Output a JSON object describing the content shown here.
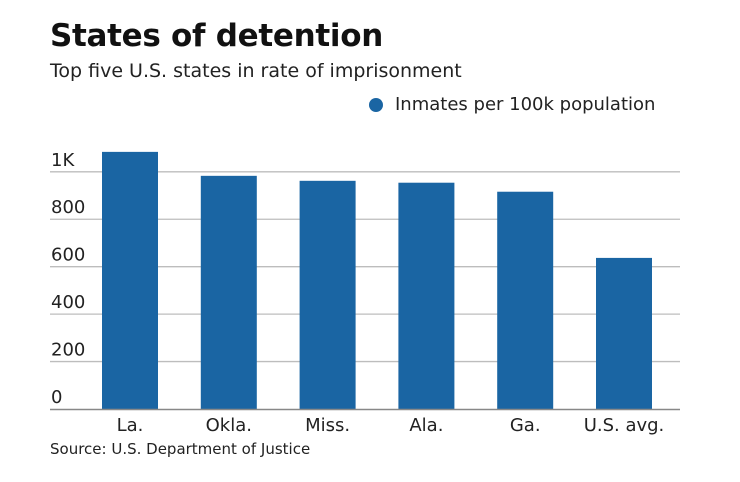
{
  "chart_data": {
    "type": "bar",
    "title": "States of detention",
    "subtitle": "Top five U.S. states in rate of imprisonment",
    "xlabel": "",
    "ylabel": "",
    "categories": [
      "La.",
      "Okla.",
      "Miss.",
      "Ala.",
      "Ga.",
      "U.S. avg."
    ],
    "series": [
      {
        "name": "Inmates per 100k population",
        "color": "#1a65a3",
        "values": [
          1084,
          983,
          962,
          954,
          916,
          637
        ]
      }
    ],
    "ylim": [
      0,
      1000
    ],
    "yticks": [
      0,
      200,
      400,
      600,
      800,
      1000
    ],
    "ytick_labels": [
      "0",
      "200",
      "400",
      "600",
      "800",
      "1K"
    ],
    "grid": true,
    "legend_position": "top-right",
    "source": "Source: U.S. Department of Justice"
  },
  "colors": {
    "bar": "#1a65a3",
    "grid": "#bdbdbd",
    "axis": "#888888",
    "text": "#222222"
  }
}
